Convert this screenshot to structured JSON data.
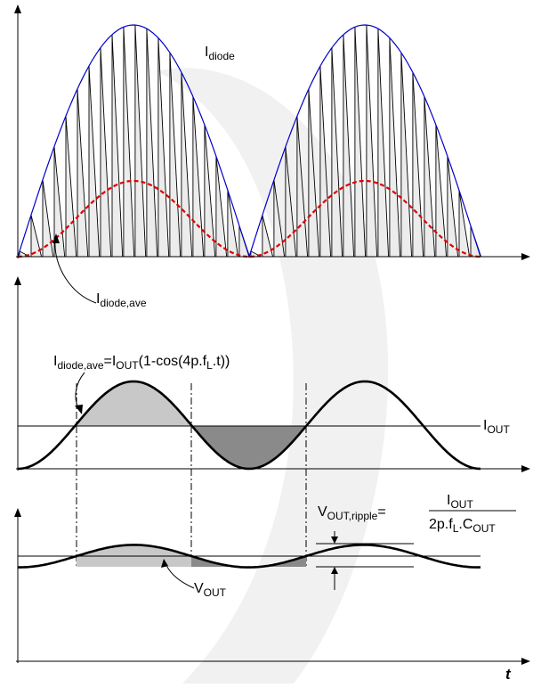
{
  "colors": {
    "background": "#ffffff",
    "watermark": "#f1f1f1",
    "axis": "#000000",
    "envelope": "#0000cc",
    "average_dashed": "#dd0000",
    "pulses": "#000000",
    "light_fill": "#c8c8c8",
    "dark_fill": "#8a8a8a"
  },
  "top_panel": {
    "label_diode": {
      "main": "I",
      "sub": "diode"
    },
    "label_diode_ave": {
      "main": "I",
      "sub": "diode,ave"
    }
  },
  "middle_panel": {
    "formula": {
      "lhs_main": "I",
      "lhs_sub": "diode,ave",
      "eq_i": "=I",
      "out_sub": "OUT",
      "args_a": "(1-cos(4p.f",
      "l_sub": "L",
      "args_b": ".t))"
    },
    "label_iout": {
      "main": "I",
      "sub": "OUT"
    }
  },
  "bottom_panel": {
    "ripple": {
      "lhs_main": "V",
      "lhs_sub": "OUT,ripple",
      "eq": "=",
      "num_main": "I",
      "num_sub": "OUT",
      "den_a": "2p.f",
      "den_l_sub": "L",
      "den_b": ".C",
      "den_out_sub": "OUT"
    },
    "label_vout": {
      "main": "V",
      "sub": "OUT"
    }
  },
  "axis": {
    "time_label": "t"
  }
}
